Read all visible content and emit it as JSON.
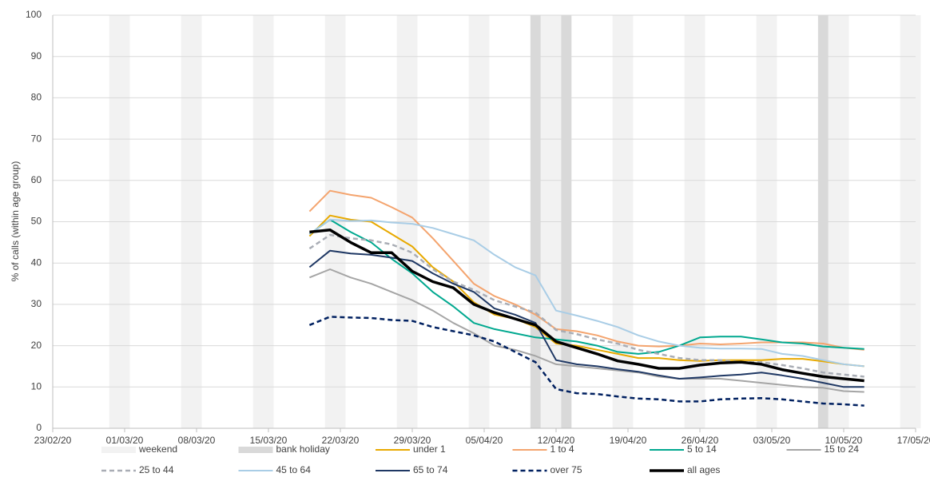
{
  "chart_data": {
    "type": "line",
    "y_label": "% of calls (within age group)",
    "xlim": [
      "23/02/20",
      "17/05/20"
    ],
    "xticks": [
      "23/02/20",
      "01/03/20",
      "08/03/20",
      "15/03/20",
      "22/03/20",
      "29/03/20",
      "05/04/20",
      "12/04/20",
      "19/04/20",
      "26/04/20",
      "03/05/20",
      "10/05/20",
      "17/05/20"
    ],
    "ylim": [
      0,
      100
    ],
    "yticks": [
      0,
      10,
      20,
      30,
      40,
      50,
      60,
      70,
      80,
      90,
      100
    ],
    "grid": true,
    "legend": "bottom",
    "weekend": {
      "name": "weekend",
      "color": "#f2f2f2",
      "dates": [
        [
          "29/02/20",
          "01/03/20"
        ],
        [
          "07/03/20",
          "08/03/20"
        ],
        [
          "14/03/20",
          "15/03/20"
        ],
        [
          "21/03/20",
          "22/03/20"
        ],
        [
          "28/03/20",
          "29/03/20"
        ],
        [
          "04/04/20",
          "05/04/20"
        ],
        [
          "11/04/20",
          "12/04/20"
        ],
        [
          "18/04/20",
          "19/04/20"
        ],
        [
          "25/04/20",
          "26/04/20"
        ],
        [
          "02/05/20",
          "03/05/20"
        ],
        [
          "09/05/20",
          "10/05/20"
        ],
        [
          "16/05/20",
          "17/05/20"
        ]
      ]
    },
    "bank_holiday": {
      "name": "bank holiday",
      "color": "#d9d9d9",
      "dates": [
        "10/04/20",
        "13/04/20",
        "08/05/20"
      ]
    },
    "x": [
      "19/03/20",
      "21/03/20",
      "23/03/20",
      "25/03/20",
      "27/03/20",
      "29/03/20",
      "31/03/20",
      "02/04/20",
      "04/04/20",
      "06/04/20",
      "08/04/20",
      "10/04/20",
      "12/04/20",
      "14/04/20",
      "16/04/20",
      "18/04/20",
      "20/04/20",
      "22/04/20",
      "24/04/20",
      "26/04/20",
      "28/04/20",
      "30/04/20",
      "02/05/20",
      "04/05/20",
      "06/05/20",
      "08/05/20",
      "10/05/20",
      "12/05/20"
    ],
    "series": [
      {
        "name": "under 1",
        "color": "#e8a900",
        "line_style": "solid",
        "values": [
          46.5,
          51.5,
          50.5,
          50,
          47,
          44,
          39,
          35.5,
          30.5,
          27.5,
          26.5,
          24.5,
          20.5,
          20,
          19,
          18,
          17,
          17,
          16.5,
          16.3,
          16.5,
          16.5,
          16.5,
          16.8,
          16.8,
          16.2,
          15.5,
          15
        ]
      },
      {
        "name": "1 to 4",
        "color": "#f4a46e",
        "line_style": "solid",
        "values": [
          52.5,
          57.5,
          56.5,
          55.8,
          53.5,
          51,
          46,
          40.5,
          35,
          32,
          30,
          27.5,
          24,
          23.5,
          22.5,
          21,
          20,
          19.8,
          20,
          20.5,
          20.3,
          20.5,
          20.8,
          20.8,
          20.8,
          20.5,
          19.5,
          19
        ]
      },
      {
        "name": "5 to 14",
        "color": "#00a88f",
        "line_style": "solid",
        "values": [
          47,
          50.5,
          47.5,
          45,
          41,
          37.5,
          33,
          29.5,
          25.5,
          24,
          23,
          22,
          21.5,
          21,
          20,
          18.5,
          18,
          18.5,
          20,
          22,
          22.2,
          22.2,
          21.5,
          20.8,
          20.5,
          19.8,
          19.5,
          19.2
        ]
      },
      {
        "name": "15 to 24",
        "color": "#a5a5a5",
        "line_style": "solid",
        "values": [
          36.5,
          38.5,
          36.5,
          35,
          33,
          31,
          28.5,
          25.5,
          23,
          20,
          19,
          17.5,
          15.5,
          15,
          14.5,
          14,
          13.5,
          12.5,
          12,
          12,
          12,
          11.5,
          11,
          10.5,
          10,
          9.8,
          9,
          8.8
        ]
      },
      {
        "name": "25 to 44",
        "color": "#a9adb5",
        "line_style": "dashed",
        "values": [
          43.5,
          46.8,
          46,
          45.5,
          44.5,
          42.5,
          38.5,
          35.5,
          33.5,
          31,
          29.5,
          28,
          23.8,
          22.8,
          21.5,
          20.5,
          19,
          18,
          17,
          16.5,
          16.5,
          16,
          16,
          15.3,
          14.5,
          13.5,
          13,
          12.5
        ]
      },
      {
        "name": "45 to 64",
        "color": "#a9cde6",
        "line_style": "solid",
        "values": [
          47,
          50.5,
          50.2,
          50.3,
          49.8,
          49.5,
          48.5,
          47,
          45.5,
          42,
          39,
          37,
          28.5,
          27.3,
          26,
          24.5,
          22.5,
          21,
          20,
          19.5,
          19.3,
          19.3,
          19.2,
          18,
          17.5,
          16.5,
          15.5,
          15
        ]
      },
      {
        "name": "65 to 74",
        "color": "#1f3864",
        "line_style": "solid",
        "values": [
          39,
          43,
          42.3,
          42,
          41.3,
          40.5,
          37.5,
          35,
          33,
          29,
          27.5,
          25.5,
          16.5,
          15.5,
          15,
          14.3,
          13.7,
          12.8,
          12,
          12.3,
          12.7,
          13,
          13.5,
          12.8,
          12,
          11,
          10,
          10
        ]
      },
      {
        "name": "over 75",
        "color": "#002060",
        "line_style": "dashed",
        "values": [
          25,
          27,
          26.8,
          26.7,
          26.2,
          26,
          24.5,
          23.5,
          22.5,
          21,
          18.5,
          16,
          9.5,
          8.5,
          8.3,
          7.7,
          7.2,
          7,
          6.5,
          6.5,
          7,
          7.2,
          7.3,
          7,
          6.5,
          6,
          5.8,
          5.5
        ]
      },
      {
        "name": "all ages",
        "color": "#000000",
        "line_style": "thick",
        "values": [
          47.5,
          48,
          45,
          42.5,
          42.5,
          38,
          35.5,
          34,
          30,
          28,
          26.5,
          25,
          21,
          19.5,
          18,
          16.3,
          15.5,
          14.5,
          14.5,
          15.3,
          15.8,
          16,
          15.5,
          14.2,
          13.3,
          12.5,
          12,
          11.5
        ]
      }
    ]
  }
}
